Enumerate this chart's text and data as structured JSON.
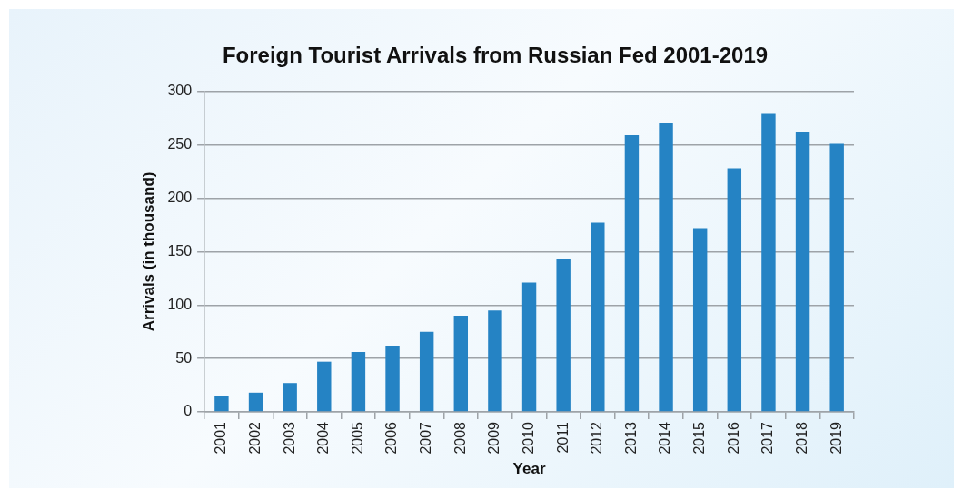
{
  "chart_data": {
    "type": "bar",
    "title": "Foreign Tourist Arrivals from Russian Fed 2001-2019",
    "xlabel": "Year",
    "ylabel": "Arrivals (in thousand)",
    "categories": [
      "2001",
      "2002",
      "2003",
      "2004",
      "2005",
      "2006",
      "2007",
      "2008",
      "2009",
      "2010",
      "2011",
      "2012",
      "2013",
      "2014",
      "2015",
      "2016",
      "2017",
      "2018",
      "2019"
    ],
    "values": [
      15,
      18,
      27,
      47,
      56,
      62,
      75,
      90,
      95,
      121,
      143,
      177,
      259,
      270,
      172,
      228,
      279,
      262,
      251
    ],
    "color": "#2583c4",
    "ylim": [
      0,
      300
    ],
    "yticks": [
      0,
      50,
      100,
      150,
      200,
      250,
      300
    ],
    "grid": "y"
  }
}
